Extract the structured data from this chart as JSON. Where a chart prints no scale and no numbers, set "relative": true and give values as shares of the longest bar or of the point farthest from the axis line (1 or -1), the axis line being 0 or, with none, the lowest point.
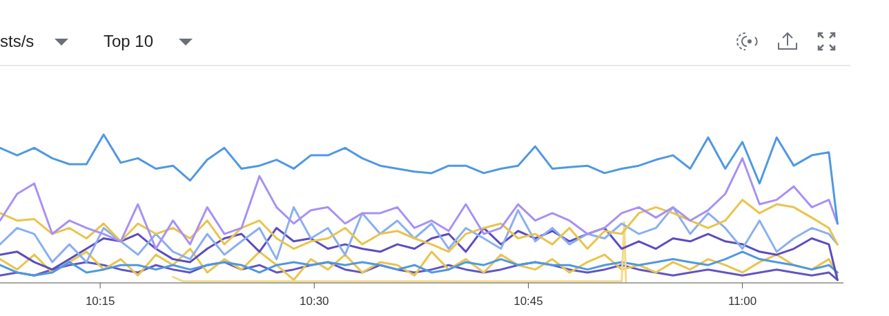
{
  "chart_data": {
    "type": "line",
    "relative": true,
    "annotations": [
      "sts/s",
      "Top 10"
    ],
    "x": [
      10.133,
      10.153,
      10.173,
      10.194,
      10.214,
      10.234,
      10.254,
      10.274,
      10.294,
      10.315,
      10.335,
      10.355,
      10.375,
      10.395,
      10.415,
      10.436,
      10.456,
      10.476,
      10.496,
      10.516,
      10.536,
      10.556,
      10.577,
      10.597,
      10.617,
      10.637,
      10.657,
      10.677,
      10.698,
      10.718,
      10.738,
      10.758,
      10.778,
      10.798,
      10.819,
      10.839,
      10.859,
      10.879,
      10.899,
      10.919,
      10.939,
      10.96,
      10.98,
      11.0,
      11.02,
      11.04,
      11.06,
      11.081,
      11.101,
      11.111
    ],
    "xlim": [
      10.133,
      11.118
    ],
    "xticks": [
      {
        "value": 10.25,
        "label": "10:15"
      },
      {
        "value": 10.5,
        "label": "10:30"
      },
      {
        "value": 10.75,
        "label": "10:45"
      },
      {
        "value": 11.0,
        "label": "11:00"
      }
    ],
    "series": [
      {
        "color": "#6155c4",
        "values": [
          0.05,
          0.07,
          0.05,
          0.09,
          0.12,
          0.14,
          0.12,
          0.09,
          0.07,
          0.12,
          0.09,
          0.07,
          0.12,
          0.14,
          0.09,
          0.12,
          0.07,
          0.09,
          0.12,
          0.14,
          0.09,
          0.07,
          0.12,
          0.09,
          0.07,
          0.09,
          0.12,
          0.09,
          0.07,
          0.09,
          0.12,
          0.14,
          0.12,
          0.09,
          0.07,
          0.09,
          0.12,
          0.09,
          0.07,
          0.05,
          0.07,
          0.09,
          0.07,
          0.05,
          0.07,
          0.09,
          0.07,
          0.05,
          0.07,
          0.02
        ]
      },
      {
        "color": "#e9c44c",
        "values": [
          0.16,
          0.09,
          0.19,
          0.07,
          0.14,
          0.21,
          0.09,
          0.16,
          0.05,
          0.19,
          0.12,
          0.23,
          0.07,
          0.16,
          0.09,
          0.21,
          0.12,
          0.02,
          0.16,
          0.09,
          0.19,
          0.07,
          0.14,
          0.12,
          0.05,
          0.21,
          0.09,
          0.16,
          0.07,
          0.19,
          0.12,
          0.09,
          0.16,
          0.07,
          0.14,
          0.19,
          0.09,
          0.12,
          0.07,
          0.14,
          0.09,
          0.16,
          0.12,
          0.07,
          0.14,
          0.19,
          0.12,
          0.09,
          0.16,
          0.05
        ]
      },
      {
        "color": "#4f98e2",
        "values": [
          0.12,
          0.07,
          0.05,
          0.07,
          0.14,
          0.07,
          0.09,
          0.12,
          0.12,
          0.09,
          0.12,
          0.09,
          0.12,
          0.14,
          0.12,
          0.07,
          0.12,
          0.14,
          0.12,
          0.14,
          0.12,
          0.14,
          0.12,
          0.09,
          0.12,
          0.07,
          0.09,
          0.14,
          0.12,
          0.16,
          0.12,
          0.14,
          0.12,
          0.12,
          0.09,
          0.12,
          0.14,
          0.12,
          0.14,
          0.16,
          0.14,
          0.12,
          0.16,
          0.21,
          0.16,
          0.14,
          0.12,
          0.09,
          0.12,
          0.07
        ]
      },
      {
        "color": "#f3d98a",
        "x": [
          10.335,
          10.347,
          10.859,
          10.862,
          10.864
        ],
        "values": [
          0.04,
          0.01,
          0.01,
          0.41,
          0.01
        ]
      },
      {
        "color": "#5b4cc0",
        "values": [
          0.19,
          0.21,
          0.14,
          0.09,
          0.16,
          0.23,
          0.3,
          0.28,
          0.33,
          0.23,
          0.16,
          0.14,
          0.23,
          0.3,
          0.33,
          0.21,
          0.37,
          0.28,
          0.3,
          0.23,
          0.26,
          0.23,
          0.21,
          0.26,
          0.23,
          0.3,
          0.33,
          0.21,
          0.37,
          0.26,
          0.35,
          0.3,
          0.35,
          0.28,
          0.33,
          0.37,
          0.23,
          0.28,
          0.23,
          0.3,
          0.28,
          0.33,
          0.28,
          0.26,
          0.21,
          0.19,
          0.23,
          0.3,
          0.26,
          0.02
        ]
      },
      {
        "color": "#8aaff0",
        "values": [
          0.26,
          0.37,
          0.33,
          0.14,
          0.26,
          0.14,
          0.37,
          0.28,
          0.19,
          0.33,
          0.21,
          0.16,
          0.33,
          0.19,
          0.28,
          0.37,
          0.16,
          0.51,
          0.3,
          0.37,
          0.19,
          0.47,
          0.33,
          0.42,
          0.3,
          0.4,
          0.23,
          0.37,
          0.3,
          0.23,
          0.49,
          0.28,
          0.37,
          0.26,
          0.33,
          0.3,
          0.4,
          0.33,
          0.37,
          0.51,
          0.33,
          0.47,
          0.37,
          0.23,
          0.42,
          0.21,
          0.3,
          0.37,
          0.33,
          0.26
        ]
      },
      {
        "color": "#e9c44c",
        "values": [
          0.47,
          0.42,
          0.43,
          0.33,
          0.37,
          0.3,
          0.4,
          0.28,
          0.4,
          0.33,
          0.37,
          0.3,
          0.42,
          0.26,
          0.37,
          0.42,
          0.3,
          0.23,
          0.28,
          0.3,
          0.37,
          0.26,
          0.33,
          0.35,
          0.3,
          0.26,
          0.21,
          0.33,
          0.37,
          0.4,
          0.3,
          0.33,
          0.26,
          0.37,
          0.23,
          0.35,
          0.33,
          0.47,
          0.51,
          0.47,
          0.42,
          0.37,
          0.42,
          0.56,
          0.47,
          0.53,
          0.51,
          0.44,
          0.37,
          0.26
        ]
      },
      {
        "color": "#a890f5",
        "values": [
          0.42,
          0.6,
          0.67,
          0.33,
          0.42,
          0.37,
          0.33,
          0.28,
          0.53,
          0.23,
          0.42,
          0.26,
          0.51,
          0.33,
          0.37,
          0.72,
          0.51,
          0.4,
          0.49,
          0.51,
          0.4,
          0.47,
          0.47,
          0.51,
          0.37,
          0.42,
          0.35,
          0.53,
          0.33,
          0.37,
          0.53,
          0.42,
          0.47,
          0.42,
          0.33,
          0.37,
          0.47,
          0.51,
          0.44,
          0.51,
          0.42,
          0.49,
          0.6,
          0.84,
          0.53,
          0.56,
          0.65,
          0.51,
          0.56,
          0.4
        ]
      },
      {
        "color": "#4f98e2",
        "values": [
          0.91,
          0.86,
          0.91,
          0.84,
          0.8,
          0.8,
          1.0,
          0.81,
          0.84,
          0.77,
          0.79,
          0.69,
          0.83,
          0.91,
          0.77,
          0.79,
          0.83,
          0.77,
          0.86,
          0.86,
          0.91,
          0.84,
          0.79,
          0.77,
          0.75,
          0.74,
          0.79,
          0.79,
          0.74,
          0.77,
          0.79,
          0.92,
          0.77,
          0.78,
          0.79,
          0.74,
          0.77,
          0.79,
          0.83,
          0.86,
          0.77,
          0.98,
          0.77,
          0.95,
          0.67,
          0.98,
          0.79,
          0.86,
          0.88,
          0.4
        ]
      }
    ]
  }
}
